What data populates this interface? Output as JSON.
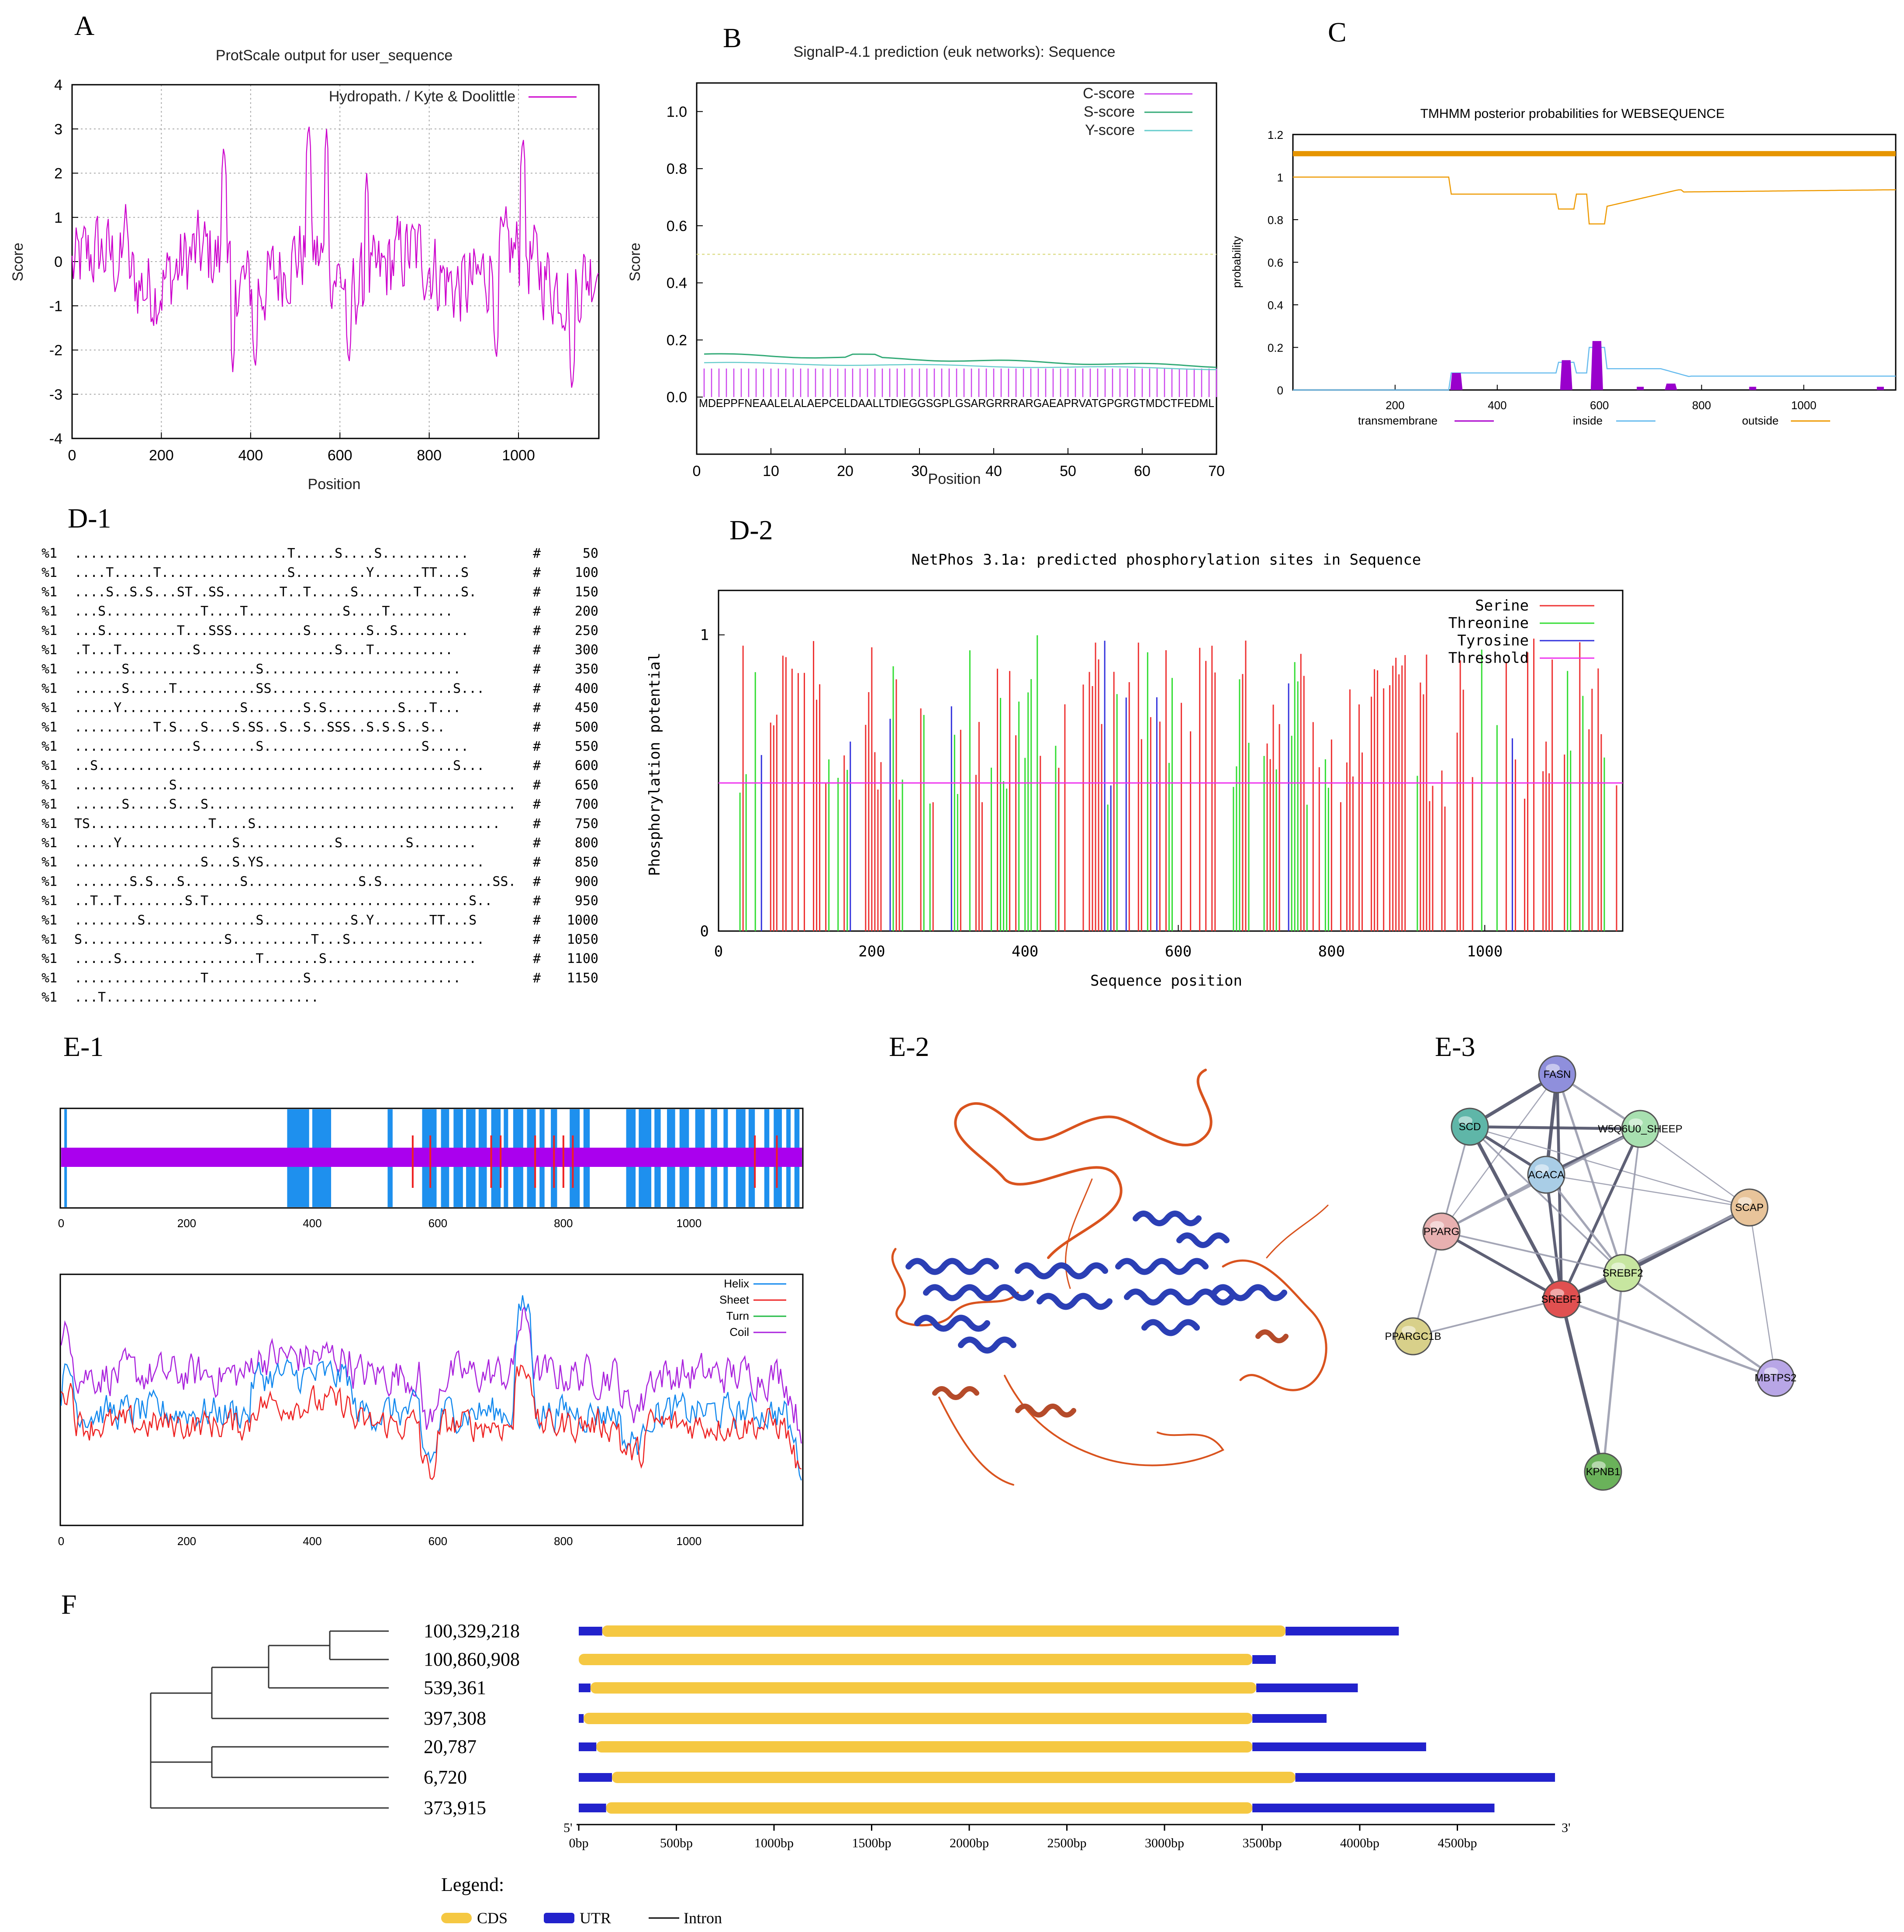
{
  "panels": {
    "A": "A",
    "B": "B",
    "C": "C",
    "D1": "D-1",
    "D2": "D-2",
    "E1": "E-1",
    "E2": "E-2",
    "E3": "E-3",
    "F": "F"
  },
  "chart_data": [
    {
      "id": "A",
      "type": "line",
      "title": "ProtScale output for user_sequence",
      "xlabel": "Position",
      "ylabel": "Score",
      "xlim": [
        0,
        1180
      ],
      "ylim": [
        -4,
        4
      ],
      "xticks": [
        0,
        200,
        400,
        600,
        800,
        1000
      ],
      "yticks": [
        4,
        3,
        2,
        1,
        0,
        -1,
        -2,
        -3,
        -4
      ],
      "grid": true,
      "legend_position": "top-right",
      "series": [
        {
          "name": "Hydropath. / Kyte & Doolittle",
          "color": "#cc00cc",
          "peaks": [
            [
              120,
              1.3
            ],
            [
              340,
              2.7
            ],
            [
              360,
              -2.5
            ],
            [
              410,
              -2.5
            ],
            [
              530,
              3.2
            ],
            [
              570,
              3.0
            ],
            [
              620,
              -2.4
            ],
            [
              660,
              2.0
            ],
            [
              950,
              -2.3
            ],
            [
              1010,
              2.9
            ],
            [
              1120,
              -3.0
            ]
          ]
        }
      ]
    },
    {
      "id": "B",
      "type": "line",
      "title": "SignalP-4.1 prediction (euk networks): Sequence",
      "xlabel": "Position",
      "ylabel": "Score",
      "xlim": [
        0,
        70
      ],
      "ylim": [
        -0.2,
        1.1
      ],
      "xticks": [
        0,
        10,
        20,
        30,
        40,
        50,
        60,
        70
      ],
      "yticks": [
        "1.0",
        "0.8",
        "0.6",
        "0.4",
        "0.2",
        "0.0"
      ],
      "threshold": 0.5,
      "sequence": "MDEPPFNEAALELALAEPCELDAALLTDIEGGSGPLGSARGRRRARGAEAPRVATGPGRGTMDCTFEDML",
      "series": [
        {
          "name": "C-score",
          "color": "#cc44ee",
          "value": 0.1
        },
        {
          "name": "S-score",
          "color": "#33aa77",
          "values": [
            0.15,
            0.13,
            0.13,
            0.12,
            0.12,
            0.13,
            0.11,
            0.11,
            0.1,
            0.1
          ]
        },
        {
          "name": "Y-score",
          "color": "#66cccc",
          "values": [
            0.12,
            0.12,
            0.12,
            0.11,
            0.11,
            0.11,
            0.1,
            0.1,
            0.1,
            0.1
          ]
        }
      ]
    },
    {
      "id": "C",
      "type": "area",
      "title": "TMHMM posterior probabilities for WEBSEQUENCE",
      "ylabel": "probability",
      "xlim": [
        0,
        1180
      ],
      "ylim": [
        0,
        1.2
      ],
      "xticks": [
        200,
        400,
        600,
        800,
        1000
      ],
      "yticks": [
        "1.2",
        "1",
        "0.8",
        "0.6",
        "0.4",
        "0.2",
        "0"
      ],
      "legend": [
        {
          "name": "transmembrane",
          "color": "#aa00cc"
        },
        {
          "name": "inside",
          "color": "#66bbee"
        },
        {
          "name": "outside",
          "color": "#ee9900"
        }
      ],
      "tm_peaks": [
        [
          320,
          0.08
        ],
        [
          535,
          0.14
        ],
        [
          595,
          0.23
        ],
        [
          740,
          0.03
        ]
      ]
    },
    {
      "id": "D2",
      "type": "bar",
      "title": "NetPhos 3.1a: predicted phosphorylation sites in Sequence",
      "xlabel": "Sequence position",
      "ylabel": "Phosphorylation potential",
      "xlim": [
        0,
        1180
      ],
      "ylim": [
        0,
        1.15
      ],
      "xticks": [
        0,
        200,
        400,
        600,
        800,
        1000
      ],
      "yticks": [
        1,
        0
      ],
      "threshold": 0.5,
      "series": [
        {
          "name": "Serine",
          "color": "#ee3333"
        },
        {
          "name": "Threonine",
          "color": "#33dd33"
        },
        {
          "name": "Tyrosine",
          "color": "#3333dd"
        },
        {
          "name": "Threshold",
          "color": "#ee33ee"
        }
      ]
    },
    {
      "id": "E1",
      "type": "line",
      "xticks": [
        0,
        200,
        400,
        600,
        800,
        1000
      ],
      "xlim": [
        0,
        1180
      ],
      "legend": [
        {
          "name": "Helix",
          "color": "#1188ee"
        },
        {
          "name": "Sheet",
          "color": "#ee2222"
        },
        {
          "name": "Turn",
          "color": "#22bb44"
        },
        {
          "name": "Coil",
          "color": "#aa22dd"
        }
      ]
    },
    {
      "id": "F",
      "type": "table",
      "xticks": [
        "0bp",
        "500bp",
        "1000bp",
        "1500bp",
        "2000bp",
        "2500bp",
        "3000bp",
        "3500bp",
        "4000bp",
        "4500bp"
      ],
      "five_prime": "5'",
      "three_prime": "3'",
      "genes": [
        {
          "label": "100,329,218",
          "utr5": 120,
          "cds_end": 3620,
          "total": 4200
        },
        {
          "label": "100,860,908",
          "utr5": 0,
          "cds_end": 3450,
          "total": 3570
        },
        {
          "label": "539,361",
          "utr5": 60,
          "cds_end": 3470,
          "total": 3990
        },
        {
          "label": "397,308",
          "utr5": 25,
          "cds_end": 3450,
          "total": 3830
        },
        {
          "label": "20,787",
          "utr5": 90,
          "cds_end": 3450,
          "total": 4340
        },
        {
          "label": "6,720",
          "utr5": 170,
          "cds_end": 3670,
          "total": 5000
        },
        {
          "label": "373,915",
          "utr5": 140,
          "cds_end": 3450,
          "total": 4690
        }
      ],
      "legend_title": "Legend:",
      "legend": [
        {
          "name": "CDS",
          "color": "#f5c842"
        },
        {
          "name": "UTR",
          "color": "#2222cc"
        },
        {
          "name": "Intron",
          "color": "#000000"
        }
      ]
    }
  ],
  "netphos_rows": [
    {
      "seq": "...........................T.....S....S...........",
      "n": "50"
    },
    {
      "seq": "....T.....T................S.........Y......TT...S",
      "n": "100"
    },
    {
      "seq": "....S..S.S...ST..SS.......T..T.....S.......T.....S.",
      "n": "150"
    },
    {
      "seq": "...S............T....T............S....T........",
      "n": "200"
    },
    {
      "seq": "...S.........T...SSS.........S.......S..S.........",
      "n": "250"
    },
    {
      "seq": ".T...T.........S.................S...T..........",
      "n": "300"
    },
    {
      "seq": "......S................S.........................",
      "n": "350"
    },
    {
      "seq": "......S.....T..........SS.......................S...",
      "n": "400"
    },
    {
      "seq": ".....Y...............S.......S.S.........S...T...",
      "n": "450"
    },
    {
      "seq": "..........T.S...S...S.SS..S..S..SSS..S.S.S..S..",
      "n": "500"
    },
    {
      "seq": "...............S.......S....................S.....",
      "n": "550"
    },
    {
      "seq": "..S.............................................S...",
      "n": "600"
    },
    {
      "seq": "............S...........................................",
      "n": "650"
    },
    {
      "seq": "......S.....S...S.......................................",
      "n": "700"
    },
    {
      "seq": "TS...............T....S...............................",
      "n": "750"
    },
    {
      "seq": ".....Y..............S............S........S........",
      "n": "800"
    },
    {
      "seq": "................S...S.YS............................",
      "n": "850"
    },
    {
      "seq": ".......S.S...S.......S..............S.S..............SS.",
      "n": "900"
    },
    {
      "seq": "..T..T........S.T.................................S..",
      "n": "950"
    },
    {
      "seq": "........S..............S...........S.Y.......TT...S",
      "n": "1000"
    },
    {
      "seq": "S..................S..........T...S.................",
      "n": "1050"
    },
    {
      "seq": ".....S.................T.......S...................",
      "n": "1100"
    },
    {
      "seq": "................T............S...................",
      "n": "1150"
    },
    {
      "seq": "...T...........................",
      "n": ""
    }
  ],
  "netphos_prefix": "%1",
  "netphos_hash": "#",
  "string_nodes": [
    {
      "id": "FASN",
      "color": "#8f8fdc"
    },
    {
      "id": "SCD",
      "color": "#5fb6a8"
    },
    {
      "id": "W5Q6U0_SHEEP",
      "color": "#a8e0b0"
    },
    {
      "id": "ACACA",
      "color": "#a9cde6"
    },
    {
      "id": "SCAP",
      "color": "#e8c49a"
    },
    {
      "id": "PPARG",
      "color": "#e8b0b0"
    },
    {
      "id": "SREBF2",
      "color": "#c7e6a0"
    },
    {
      "id": "SREBF1",
      "color": "#e05050"
    },
    {
      "id": "PPARGC1B",
      "color": "#d8d08a"
    },
    {
      "id": "MBTPS2",
      "color": "#b8a6e6"
    },
    {
      "id": "KPNB1",
      "color": "#6ab25a"
    }
  ]
}
